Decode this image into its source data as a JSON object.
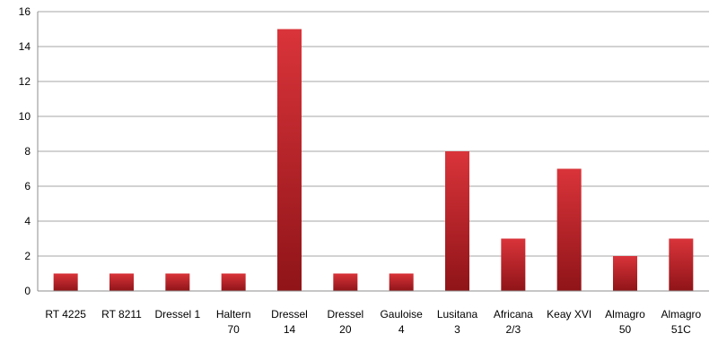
{
  "chart_data": {
    "type": "bar",
    "categories": [
      [
        "RT 4225"
      ],
      [
        "RT 8211"
      ],
      [
        "Dressel 1"
      ],
      [
        "Haltern",
        "70"
      ],
      [
        "Dressel",
        "14"
      ],
      [
        "Dressel",
        "20"
      ],
      [
        "Gauloise",
        "4"
      ],
      [
        "Lusitana",
        "3"
      ],
      [
        "Africana",
        "2/3"
      ],
      [
        "Keay XVI"
      ],
      [
        "Almagro",
        "50"
      ],
      [
        "Almagro",
        "51C"
      ]
    ],
    "values": [
      1,
      1,
      1,
      1,
      15,
      1,
      1,
      8,
      3,
      7,
      2,
      3
    ],
    "yticks": [
      "0",
      "2",
      "4",
      "6",
      "8",
      "10",
      "12",
      "14",
      "16"
    ],
    "ylim": [
      0,
      16
    ],
    "grid": true,
    "legend": "none",
    "title": "",
    "xlabel": "",
    "ylabel": "",
    "colors": {
      "bar_light": "#d9343a",
      "bar_dark": "#8f1418"
    }
  }
}
